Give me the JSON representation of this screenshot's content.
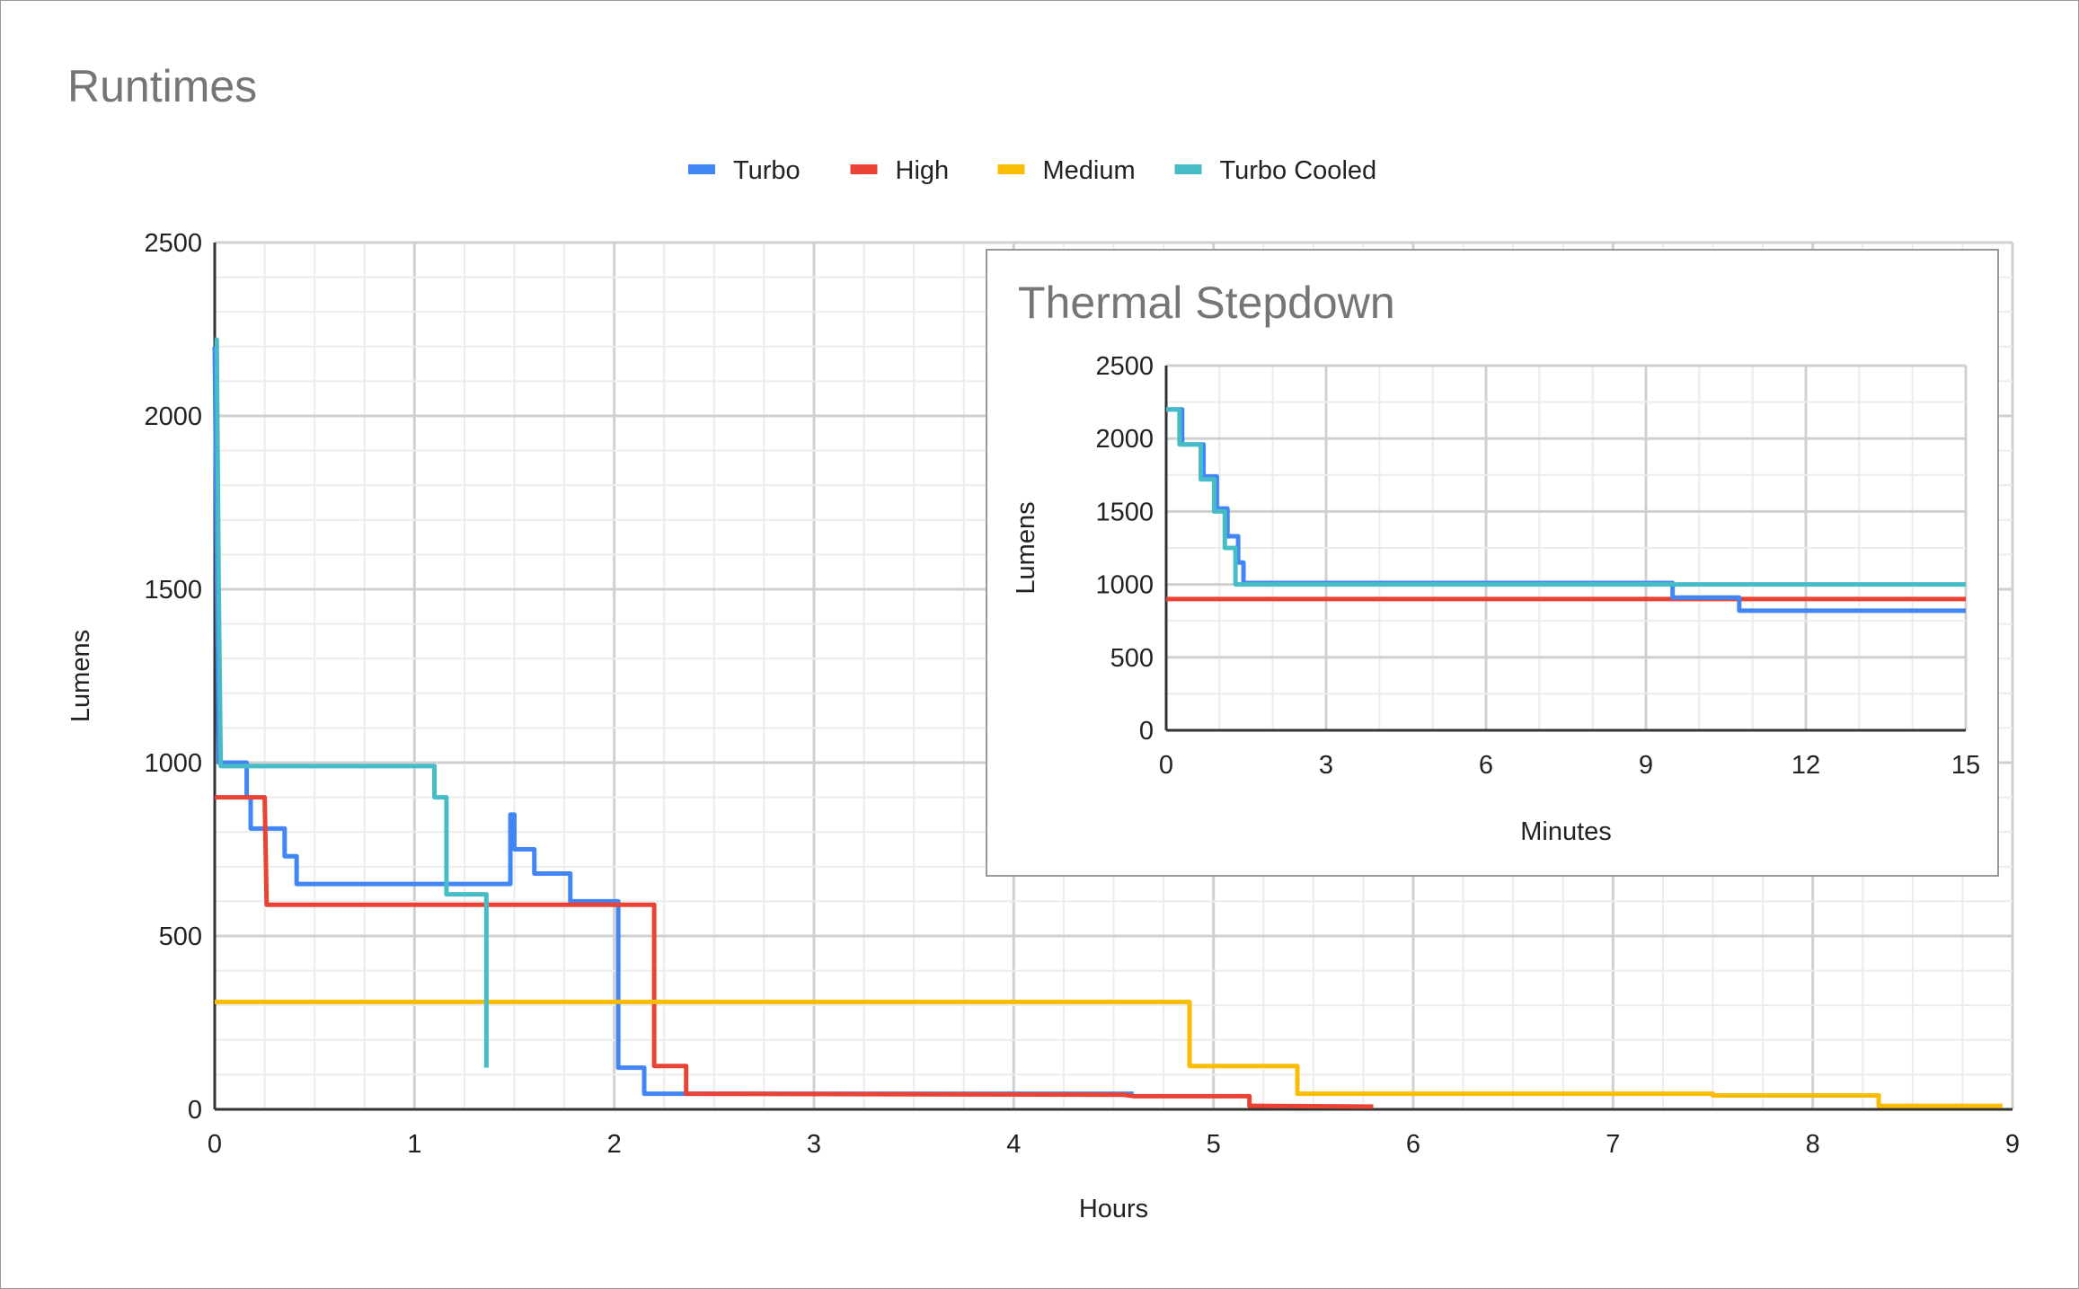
{
  "chart_data": [
    {
      "type": "line",
      "title": "Runtimes",
      "xlabel": "Hours",
      "ylabel": "Lumens",
      "xlim": [
        0,
        9
      ],
      "ylim": [
        0,
        2500
      ],
      "xticks": [
        "0",
        "1",
        "2",
        "3",
        "4",
        "5",
        "6",
        "7",
        "8",
        "9"
      ],
      "yticks": [
        "0",
        "500",
        "1000",
        "1500",
        "2000",
        "2500"
      ],
      "grid": true,
      "legend": "top",
      "series": [
        {
          "name": "Turbo",
          "color": "#4285f4",
          "points": [
            [
              0,
              2200
            ],
            [
              0.02,
              1000
            ],
            [
              0.16,
              1000
            ],
            [
              0.16,
              900
            ],
            [
              0.18,
              900
            ],
            [
              0.18,
              810
            ],
            [
              0.35,
              810
            ],
            [
              0.35,
              730
            ],
            [
              0.41,
              730
            ],
            [
              0.41,
              650
            ],
            [
              1.48,
              650
            ],
            [
              1.48,
              850
            ],
            [
              1.5,
              850
            ],
            [
              1.5,
              750
            ],
            [
              1.6,
              750
            ],
            [
              1.6,
              680
            ],
            [
              1.78,
              680
            ],
            [
              1.78,
              600
            ],
            [
              2.02,
              600
            ],
            [
              2.02,
              120
            ],
            [
              2.15,
              120
            ],
            [
              2.15,
              45
            ],
            [
              4.6,
              45
            ]
          ]
        },
        {
          "name": "High",
          "color": "#ea4335",
          "points": [
            [
              0,
              900
            ],
            [
              0.25,
              900
            ],
            [
              0.26,
              590
            ],
            [
              2.2,
              590
            ],
            [
              2.2,
              125
            ],
            [
              2.36,
              125
            ],
            [
              2.36,
              45
            ],
            [
              4.55,
              42
            ],
            [
              4.6,
              38
            ],
            [
              5.18,
              38
            ],
            [
              5.18,
              10
            ],
            [
              5.8,
              8
            ]
          ]
        },
        {
          "name": "Medium",
          "color": "#fbbc04",
          "points": [
            [
              0,
              310
            ],
            [
              4.88,
              310
            ],
            [
              4.88,
              125
            ],
            [
              5.42,
              125
            ],
            [
              5.42,
              45
            ],
            [
              7.5,
              45
            ],
            [
              7.5,
              40
            ],
            [
              8.33,
              40
            ],
            [
              8.33,
              10
            ],
            [
              8.95,
              10
            ]
          ]
        },
        {
          "name": "Turbo Cooled",
          "color": "#46bdc6",
          "points": [
            [
              0,
              2220
            ],
            [
              0.01,
              2220
            ],
            [
              0.02,
              1500
            ],
            [
              0.03,
              990
            ],
            [
              1.1,
              990
            ],
            [
              1.1,
              900
            ],
            [
              1.16,
              900
            ],
            [
              1.16,
              620
            ],
            [
              1.36,
              620
            ],
            [
              1.36,
              120
            ]
          ]
        }
      ]
    },
    {
      "type": "line",
      "title": "Thermal Stepdown",
      "xlabel": "Minutes",
      "ylabel": "Lumens",
      "xlim": [
        0,
        15
      ],
      "ylim": [
        0,
        2500
      ],
      "xticks": [
        "0",
        "3",
        "6",
        "9",
        "12",
        "15"
      ],
      "yticks": [
        "0",
        "500",
        "1000",
        "1500",
        "2000",
        "2500"
      ],
      "grid": true,
      "series": [
        {
          "name": "High",
          "color": "#ea4335",
          "points": [
            [
              0,
              900
            ],
            [
              15,
              900
            ]
          ]
        },
        {
          "name": "Turbo",
          "color": "#4285f4",
          "points": [
            [
              0,
              2200
            ],
            [
              0.3,
              2200
            ],
            [
              0.3,
              1960
            ],
            [
              0.7,
              1960
            ],
            [
              0.7,
              1740
            ],
            [
              0.95,
              1740
            ],
            [
              0.95,
              1520
            ],
            [
              1.15,
              1520
            ],
            [
              1.15,
              1330
            ],
            [
              1.35,
              1330
            ],
            [
              1.35,
              1150
            ],
            [
              1.45,
              1150
            ],
            [
              1.45,
              1010
            ],
            [
              9.5,
              1010
            ],
            [
              9.5,
              910
            ],
            [
              10.75,
              910
            ],
            [
              10.75,
              820
            ],
            [
              15,
              820
            ]
          ]
        },
        {
          "name": "Turbo Cooled",
          "color": "#46bdc6",
          "points": [
            [
              0,
              2200
            ],
            [
              0.25,
              2200
            ],
            [
              0.25,
              1960
            ],
            [
              0.65,
              1960
            ],
            [
              0.65,
              1720
            ],
            [
              0.9,
              1720
            ],
            [
              0.9,
              1500
            ],
            [
              1.1,
              1500
            ],
            [
              1.1,
              1250
            ],
            [
              1.3,
              1250
            ],
            [
              1.3,
              1000
            ],
            [
              15,
              1000
            ]
          ]
        }
      ]
    }
  ]
}
